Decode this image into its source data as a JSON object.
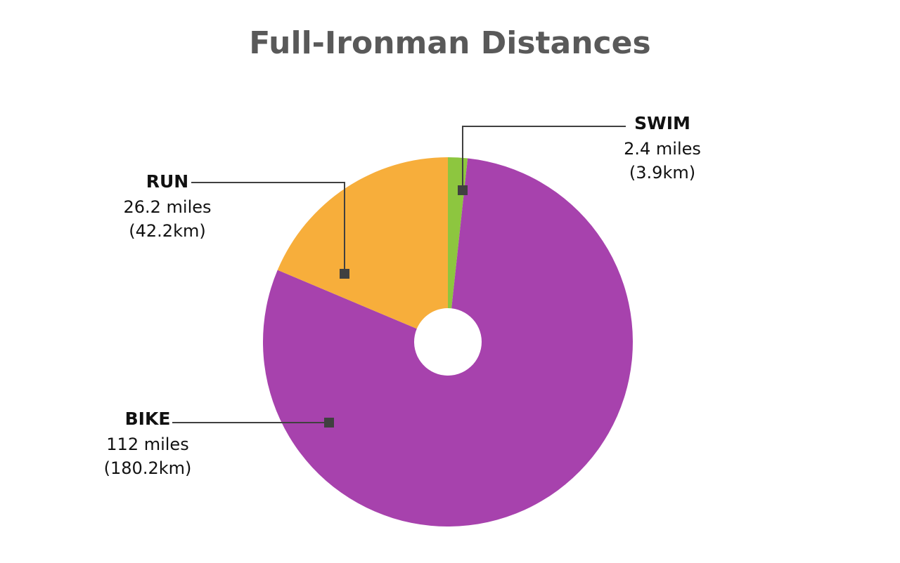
{
  "chart_data": {
    "type": "pie",
    "title": "Full-Ironman Distances",
    "categories": [
      "SWIM",
      "BIKE",
      "RUN"
    ],
    "values": [
      2.4,
      112,
      26.2
    ],
    "value_labels": [
      "2.4 miles",
      "112 miles",
      "26.2 miles"
    ],
    "km_labels": [
      "(3.9km)",
      "(180.2km)",
      "(42.2km)"
    ],
    "colors": [
      "#8dc63f",
      "#a742ad",
      "#f7ae3b"
    ]
  }
}
